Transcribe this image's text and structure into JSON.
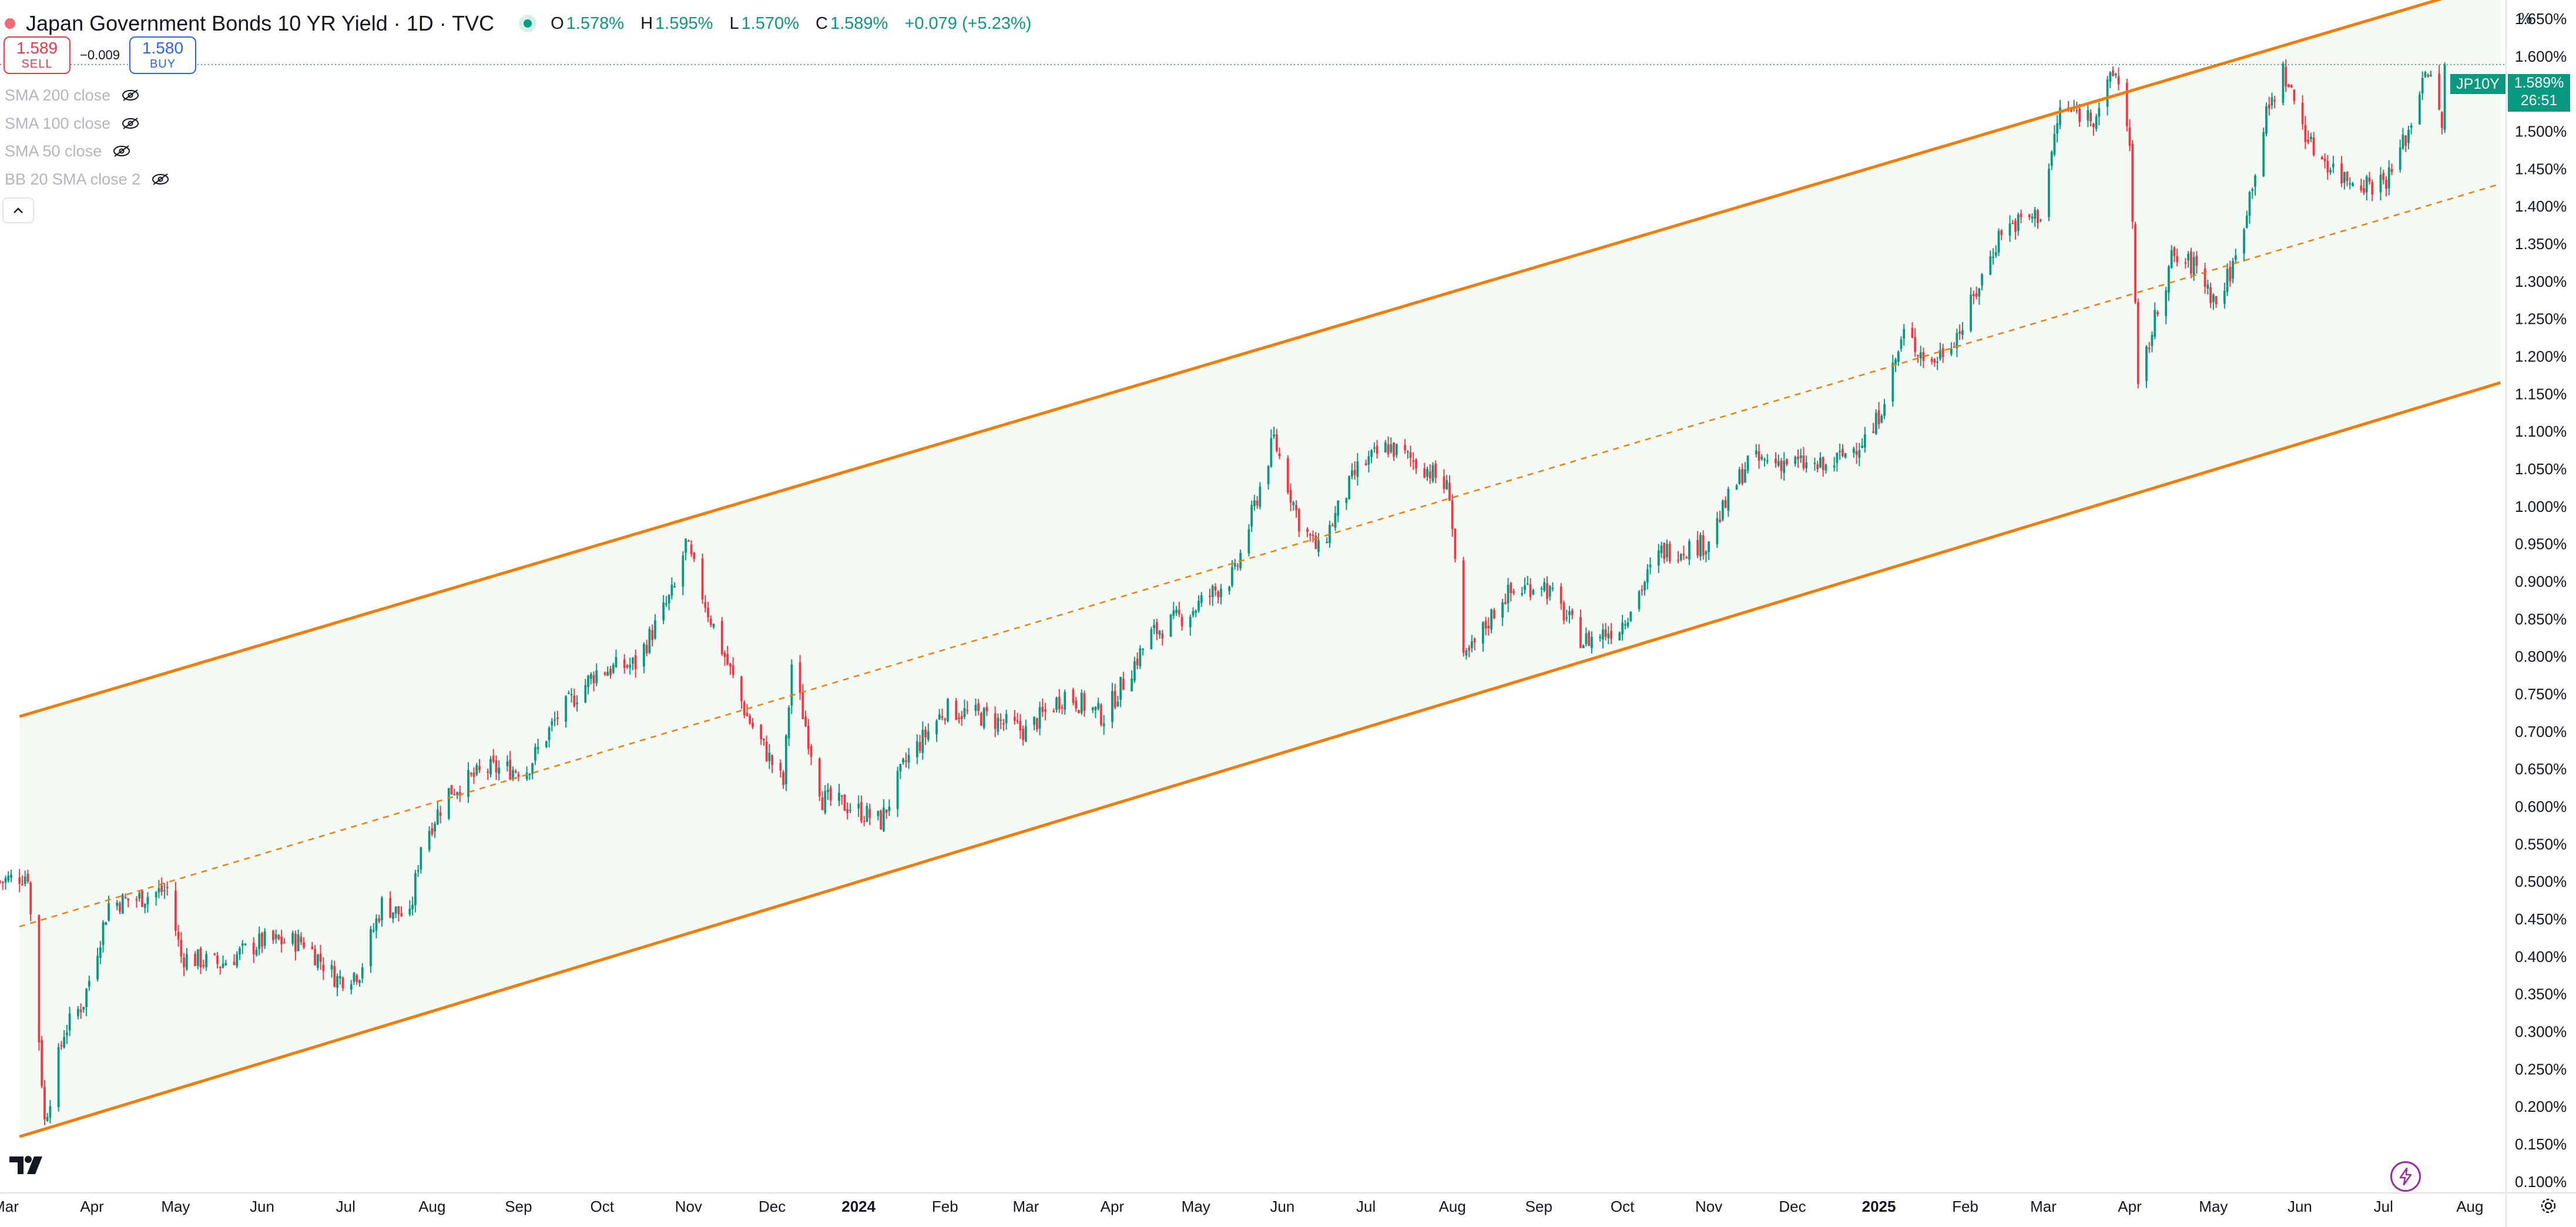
{
  "header": {
    "title": "Japan Government Bonds 10 YR Yield · 1D · TVC",
    "ohlc": [
      {
        "key": "O",
        "value": "1.578%"
      },
      {
        "key": "H",
        "value": "1.595%"
      },
      {
        "key": "L",
        "value": "1.570%"
      },
      {
        "key": "C",
        "value": "1.589%"
      }
    ],
    "change": "+0.079 (+5.23%)",
    "colors": {
      "up": "#089981",
      "down": "#f23645",
      "channel": "#ef7d0b",
      "fill": "#f4f9f4"
    }
  },
  "trade": {
    "sell_price": "1.589",
    "sell_label": "SELL",
    "spread": "−0.009",
    "buy_price": "1.580",
    "buy_label": "BUY"
  },
  "indicators": [
    {
      "label": "SMA 200 close",
      "icon": "eye-off-icon"
    },
    {
      "label": "SMA 100 close",
      "icon": "eye-off-icon"
    },
    {
      "label": "SMA 50 close",
      "icon": "eye-off-icon"
    },
    {
      "label": "BB 20 SMA close 2",
      "icon": "eye-off-icon"
    }
  ],
  "price_axis": {
    "unit": "%",
    "symbol_tag": "JP10Y",
    "last_price": "1.589%",
    "countdown": "26:51"
  },
  "chart_data": {
    "type": "candlestick",
    "title": "Japan Government Bonds 10 YR Yield · 1D · TVC",
    "xlabel": "",
    "ylabel": "%",
    "ylim": [
      0.085,
      1.675
    ],
    "xlim": [
      "2023-02-27",
      "2025-08-14"
    ],
    "y_ticks": [
      "0.100%",
      "0.150%",
      "0.200%",
      "0.250%",
      "0.300%",
      "0.350%",
      "0.400%",
      "0.450%",
      "0.500%",
      "0.550%",
      "0.600%",
      "0.650%",
      "0.700%",
      "0.750%",
      "0.800%",
      "0.850%",
      "0.900%",
      "0.950%",
      "1.000%",
      "1.050%",
      "1.100%",
      "1.150%",
      "1.200%",
      "1.250%",
      "1.300%",
      "1.350%",
      "1.400%",
      "1.450%",
      "1.500%",
      "1.550%",
      "1.600%",
      "1.650%"
    ],
    "x_ticks": [
      {
        "label": "Mar",
        "date": "2023-03-01"
      },
      {
        "label": "Apr",
        "date": "2023-04-01"
      },
      {
        "label": "May",
        "date": "2023-05-01"
      },
      {
        "label": "Jun",
        "date": "2023-06-01"
      },
      {
        "label": "Jul",
        "date": "2023-07-01"
      },
      {
        "label": "Aug",
        "date": "2023-08-01"
      },
      {
        "label": "Sep",
        "date": "2023-09-01"
      },
      {
        "label": "Oct",
        "date": "2023-10-01"
      },
      {
        "label": "Nov",
        "date": "2023-11-01"
      },
      {
        "label": "Dec",
        "date": "2023-12-01"
      },
      {
        "label": "2024",
        "date": "2024-01-01",
        "bold": true
      },
      {
        "label": "Feb",
        "date": "2024-02-01"
      },
      {
        "label": "Mar",
        "date": "2024-03-01"
      },
      {
        "label": "Apr",
        "date": "2024-04-01"
      },
      {
        "label": "May",
        "date": "2024-05-01"
      },
      {
        "label": "Jun",
        "date": "2024-06-01"
      },
      {
        "label": "Jul",
        "date": "2024-07-01"
      },
      {
        "label": "Aug",
        "date": "2024-08-01"
      },
      {
        "label": "Sep",
        "date": "2024-09-01"
      },
      {
        "label": "Oct",
        "date": "2024-10-01"
      },
      {
        "label": "Nov",
        "date": "2024-11-01"
      },
      {
        "label": "Dec",
        "date": "2024-12-01"
      },
      {
        "label": "2025",
        "date": "2025-01-01",
        "bold": true
      },
      {
        "label": "Feb",
        "date": "2025-02-01"
      },
      {
        "label": "Mar",
        "date": "2025-03-01"
      },
      {
        "label": "Apr",
        "date": "2025-04-01"
      },
      {
        "label": "May",
        "date": "2025-05-01"
      },
      {
        "label": "Jun",
        "date": "2025-06-01"
      },
      {
        "label": "Jul",
        "date": "2025-07-01"
      },
      {
        "label": "Aug",
        "date": "2025-08-01"
      }
    ],
    "last_close": 1.589,
    "channel": {
      "start_date": "2023-03-06",
      "end_date": "2025-08-12",
      "upper": [
        0.72,
        1.7
      ],
      "middle": [
        0.44,
        1.43
      ],
      "lower": [
        0.16,
        1.165
      ]
    },
    "close_path": [
      {
        "date": "2023-02-27",
        "value": 0.5
      },
      {
        "date": "2023-03-09",
        "value": 0.51
      },
      {
        "date": "2023-03-15",
        "value": 0.18
      },
      {
        "date": "2023-03-22",
        "value": 0.3
      },
      {
        "date": "2023-03-29",
        "value": 0.34
      },
      {
        "date": "2023-04-07",
        "value": 0.47
      },
      {
        "date": "2023-04-20",
        "value": 0.48
      },
      {
        "date": "2023-04-28",
        "value": 0.49
      },
      {
        "date": "2023-05-03",
        "value": 0.4
      },
      {
        "date": "2023-05-17",
        "value": 0.39
      },
      {
        "date": "2023-06-01",
        "value": 0.42
      },
      {
        "date": "2023-06-16",
        "value": 0.42
      },
      {
        "date": "2023-06-28",
        "value": 0.37
      },
      {
        "date": "2023-07-06",
        "value": 0.38
      },
      {
        "date": "2023-07-14",
        "value": 0.47
      },
      {
        "date": "2023-07-24",
        "value": 0.45
      },
      {
        "date": "2023-07-28",
        "value": 0.55
      },
      {
        "date": "2023-08-07",
        "value": 0.62
      },
      {
        "date": "2023-08-21",
        "value": 0.65
      },
      {
        "date": "2023-09-04",
        "value": 0.65
      },
      {
        "date": "2023-09-15",
        "value": 0.72
      },
      {
        "date": "2023-09-29",
        "value": 0.78
      },
      {
        "date": "2023-10-13",
        "value": 0.79
      },
      {
        "date": "2023-10-27",
        "value": 0.89
      },
      {
        "date": "2023-10-31",
        "value": 0.95
      },
      {
        "date": "2023-11-08",
        "value": 0.86
      },
      {
        "date": "2023-11-22",
        "value": 0.72
      },
      {
        "date": "2023-12-05",
        "value": 0.63
      },
      {
        "date": "2023-12-08",
        "value": 0.79
      },
      {
        "date": "2023-12-19",
        "value": 0.61
      },
      {
        "date": "2023-12-29",
        "value": 0.6
      },
      {
        "date": "2024-01-09",
        "value": 0.58
      },
      {
        "date": "2024-01-18",
        "value": 0.66
      },
      {
        "date": "2024-02-01",
        "value": 0.73
      },
      {
        "date": "2024-02-15",
        "value": 0.72
      },
      {
        "date": "2024-03-01",
        "value": 0.7
      },
      {
        "date": "2024-03-15",
        "value": 0.75
      },
      {
        "date": "2024-03-29",
        "value": 0.72
      },
      {
        "date": "2024-04-15",
        "value": 0.83
      },
      {
        "date": "2024-04-29",
        "value": 0.86
      },
      {
        "date": "2024-05-15",
        "value": 0.91
      },
      {
        "date": "2024-05-29",
        "value": 1.09
      },
      {
        "date": "2024-06-07",
        "value": 0.98
      },
      {
        "date": "2024-06-14",
        "value": 0.94
      },
      {
        "date": "2024-06-28",
        "value": 1.05
      },
      {
        "date": "2024-07-09",
        "value": 1.08
      },
      {
        "date": "2024-07-23",
        "value": 1.05
      },
      {
        "date": "2024-07-31",
        "value": 1.02
      },
      {
        "date": "2024-08-05",
        "value": 0.79
      },
      {
        "date": "2024-08-19",
        "value": 0.88
      },
      {
        "date": "2024-09-02",
        "value": 0.9
      },
      {
        "date": "2024-09-17",
        "value": 0.82
      },
      {
        "date": "2024-09-30",
        "value": 0.84
      },
      {
        "date": "2024-10-15",
        "value": 0.94
      },
      {
        "date": "2024-10-31",
        "value": 0.95
      },
      {
        "date": "2024-11-15",
        "value": 1.06
      },
      {
        "date": "2024-11-29",
        "value": 1.06
      },
      {
        "date": "2024-12-13",
        "value": 1.05
      },
      {
        "date": "2024-12-30",
        "value": 1.1
      },
      {
        "date": "2025-01-10",
        "value": 1.23
      },
      {
        "date": "2025-01-20",
        "value": 1.19
      },
      {
        "date": "2025-01-31",
        "value": 1.24
      },
      {
        "date": "2025-02-14",
        "value": 1.37
      },
      {
        "date": "2025-02-28",
        "value": 1.39
      },
      {
        "date": "2025-03-07",
        "value": 1.53
      },
      {
        "date": "2025-03-19",
        "value": 1.52
      },
      {
        "date": "2025-03-27",
        "value": 1.58
      },
      {
        "date": "2025-04-01",
        "value": 1.49
      },
      {
        "date": "2025-04-04",
        "value": 1.15
      },
      {
        "date": "2025-04-08",
        "value": 1.22
      },
      {
        "date": "2025-04-16",
        "value": 1.33
      },
      {
        "date": "2025-04-25",
        "value": 1.32
      },
      {
        "date": "2025-05-02",
        "value": 1.27
      },
      {
        "date": "2025-05-09",
        "value": 1.33
      },
      {
        "date": "2025-05-20",
        "value": 1.52
      },
      {
        "date": "2025-05-26",
        "value": 1.58
      },
      {
        "date": "2025-06-05",
        "value": 1.48
      },
      {
        "date": "2025-06-16",
        "value": 1.44
      },
      {
        "date": "2025-06-27",
        "value": 1.43
      },
      {
        "date": "2025-07-03",
        "value": 1.44
      },
      {
        "date": "2025-07-11",
        "value": 1.51
      },
      {
        "date": "2025-07-16",
        "value": 1.59
      },
      {
        "date": "2025-07-22",
        "value": 1.51
      },
      {
        "date": "2025-07-24",
        "value": 1.589
      }
    ]
  }
}
